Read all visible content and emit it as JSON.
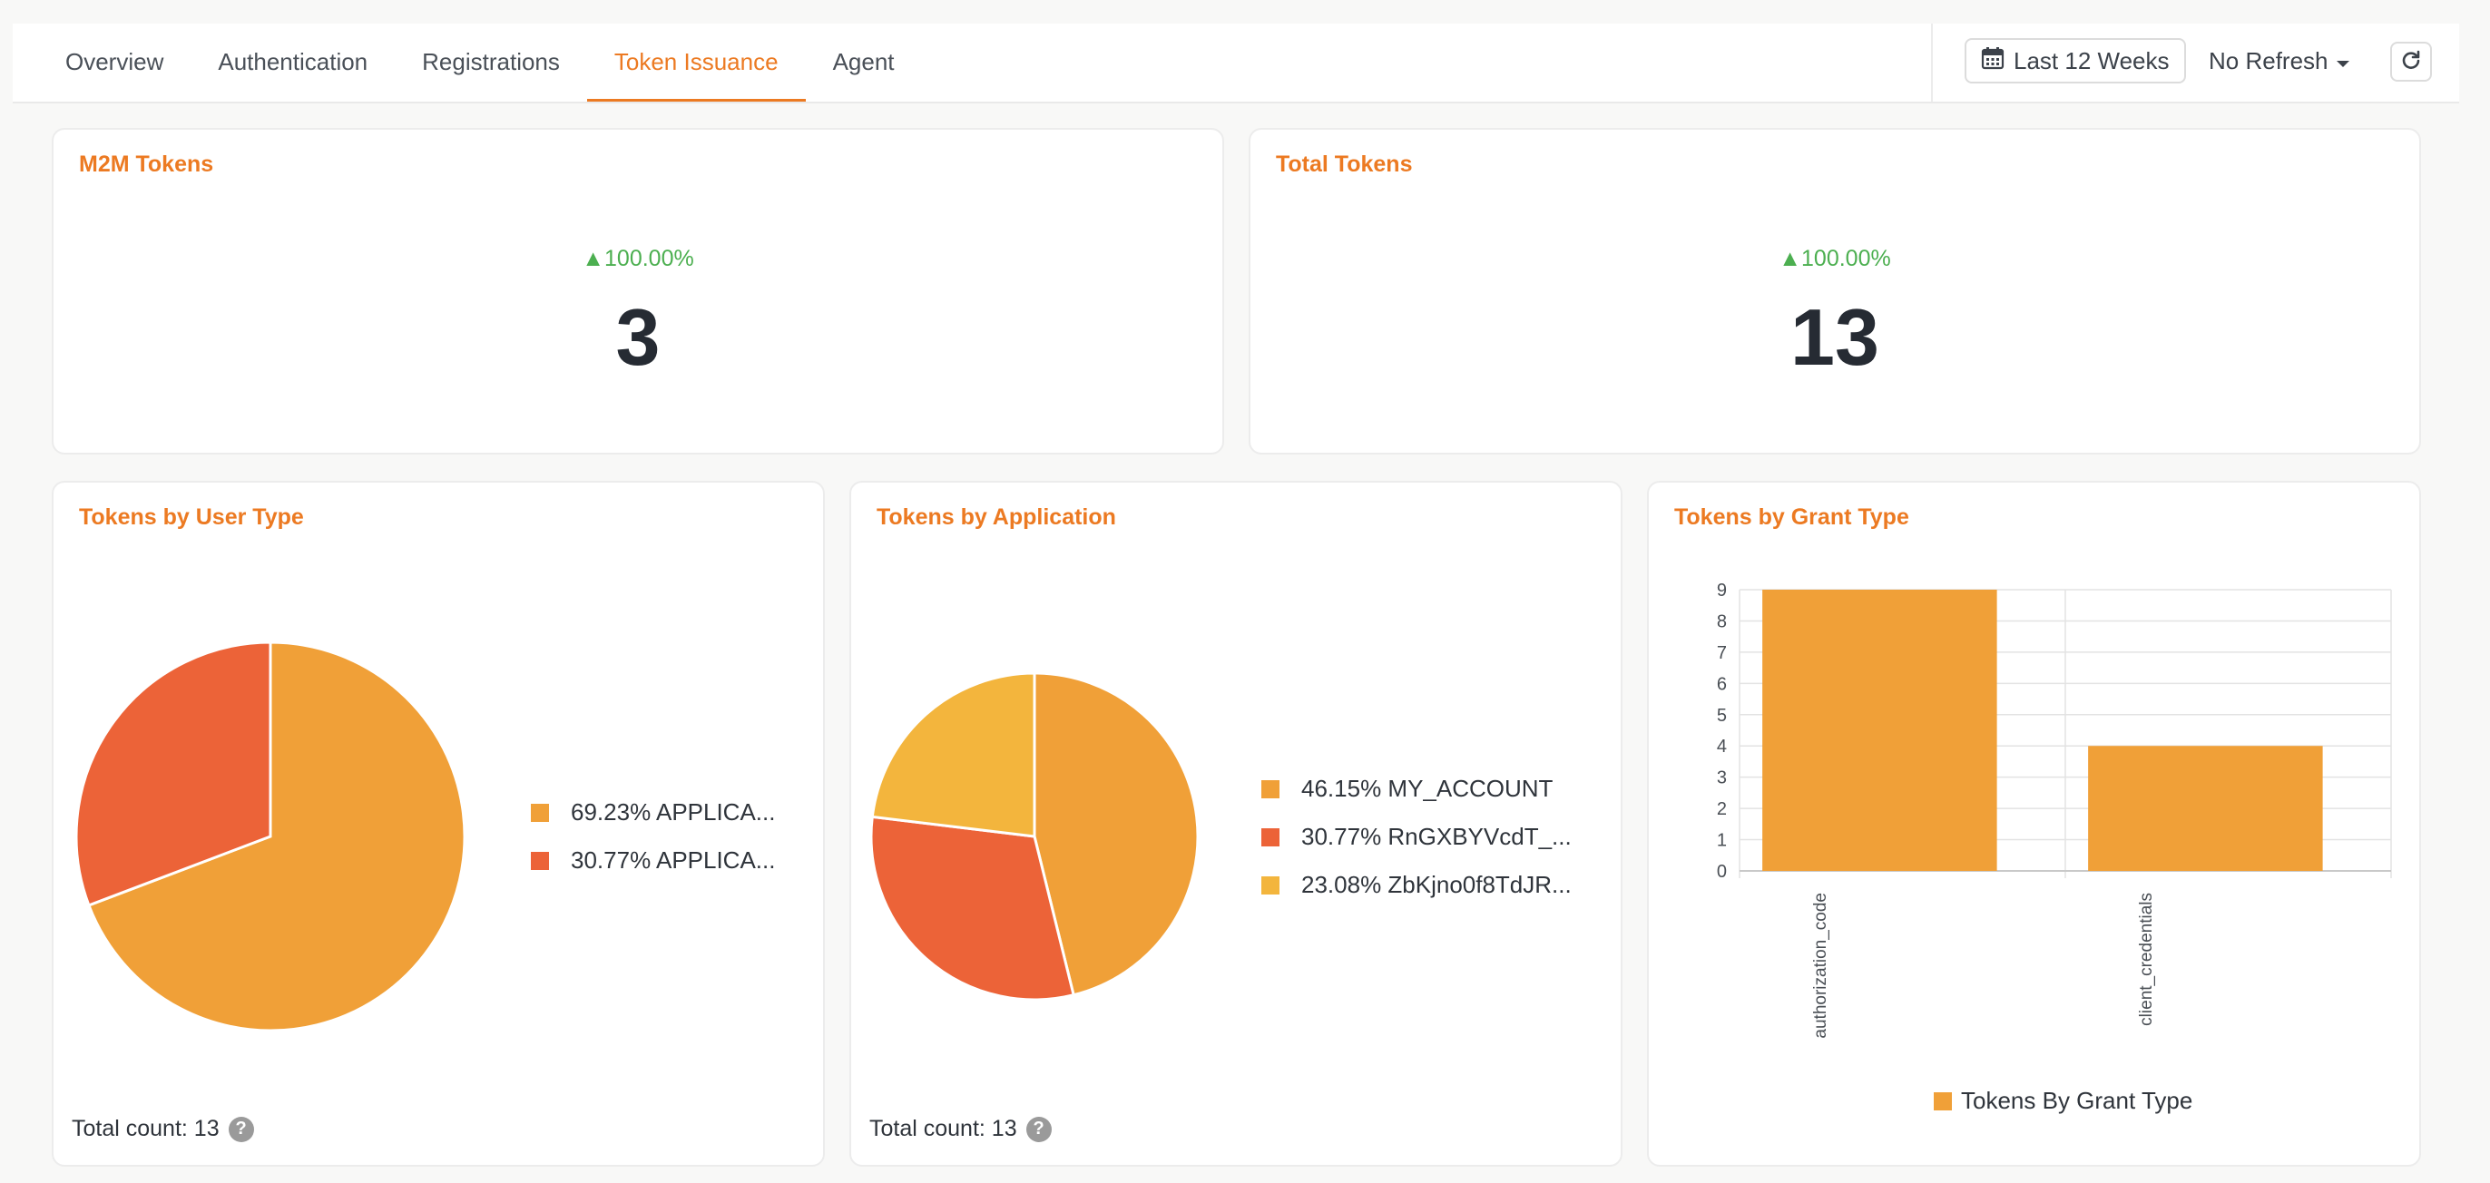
{
  "tabs": [
    {
      "label": "Overview"
    },
    {
      "label": "Authentication"
    },
    {
      "label": "Registrations"
    },
    {
      "label": "Token Issuance",
      "active": true
    },
    {
      "label": "Agent"
    }
  ],
  "toolbar": {
    "date_range_label": "Last 12 Weeks",
    "refresh_label": "No Refresh",
    "date_icon": "calendar-icon",
    "refresh_icon": "reload-icon"
  },
  "m2m": {
    "title": "M2M Tokens",
    "delta": "100.00%",
    "value": "3"
  },
  "total_tokens": {
    "title": "Total Tokens",
    "delta": "100.00%",
    "value": "13"
  },
  "user_type": {
    "title": "Tokens by User Type",
    "total_label": "Total count: 13"
  },
  "application": {
    "title": "Tokens by Application",
    "total_label": "Total count: 13"
  },
  "grant_type": {
    "title": "Tokens by Grant Type"
  },
  "colors": {
    "accent": "#ec7a22",
    "positive": "#4caf50",
    "orange": "#f0a038",
    "red": "#ec6338",
    "yellow": "#f3b53d"
  },
  "chart_data": [
    {
      "type": "pie",
      "title": "Tokens by User Type",
      "slices": [
        {
          "label": "69.23% APPLICA...",
          "value": 69.23,
          "color": "#f0a038"
        },
        {
          "label": "30.77% APPLICA...",
          "value": 30.77,
          "color": "#ec6338"
        }
      ]
    },
    {
      "type": "pie",
      "title": "Tokens by Application",
      "slices": [
        {
          "label": "46.15% MY_ACCOUNT",
          "value": 46.15,
          "color": "#f0a038"
        },
        {
          "label": "30.77% RnGXBYVcdT_...",
          "value": 30.77,
          "color": "#ec6338"
        },
        {
          "label": "23.08% ZbKjno0f8TdJR...",
          "value": 23.08,
          "color": "#f3b53d"
        }
      ]
    },
    {
      "type": "bar",
      "title": "Tokens by Grant Type",
      "categories": [
        "authorization_code",
        "client_credentials"
      ],
      "series": [
        {
          "name": "Tokens By Grant Type",
          "values": [
            9,
            4
          ],
          "color": "#f0a038"
        }
      ],
      "ylim": [
        0,
        9
      ],
      "yticks": [
        "0",
        "1",
        "2",
        "3",
        "4",
        "5",
        "6",
        "7",
        "8",
        "9"
      ],
      "grid": true,
      "legend": "bottom"
    }
  ]
}
